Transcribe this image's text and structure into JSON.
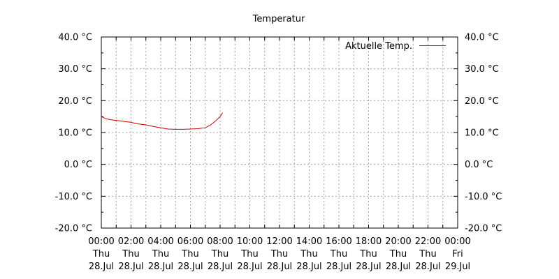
{
  "chart_data": {
    "type": "line",
    "title": "Temperatur",
    "xlabel": "",
    "ylabel": "",
    "xlim": [
      "2022-07-28 00:00",
      "2022-07-29 00:00"
    ],
    "ylim": [
      -20,
      40
    ],
    "grid": true,
    "legend_position": "top-right",
    "y_ticks": [
      {
        "value": 40,
        "label": "40.0 °C"
      },
      {
        "value": 30,
        "label": "30.0 °C"
      },
      {
        "value": 20,
        "label": "20.0 °C"
      },
      {
        "value": 10,
        "label": "10.0 °C"
      },
      {
        "value": 0,
        "label": "0.0 °C"
      },
      {
        "value": -10,
        "label": "-10.0 °C"
      },
      {
        "value": -20,
        "label": "-20.0 °C"
      }
    ],
    "x_ticks": [
      {
        "hour": 0,
        "time": "00:00",
        "day": "Thu",
        "date": "28.Jul"
      },
      {
        "hour": 2,
        "time": "02:00",
        "day": "Thu",
        "date": "28.Jul"
      },
      {
        "hour": 4,
        "time": "04:00",
        "day": "Thu",
        "date": "28.Jul"
      },
      {
        "hour": 6,
        "time": "06:00",
        "day": "Thu",
        "date": "28.Jul"
      },
      {
        "hour": 8,
        "time": "08:00",
        "day": "Thu",
        "date": "28.Jul"
      },
      {
        "hour": 10,
        "time": "10:00",
        "day": "Thu",
        "date": "28.Jul"
      },
      {
        "hour": 12,
        "time": "12:00",
        "day": "Thu",
        "date": "28.Jul"
      },
      {
        "hour": 14,
        "time": "14:00",
        "day": "Thu",
        "date": "28.Jul"
      },
      {
        "hour": 16,
        "time": "16:00",
        "day": "Thu",
        "date": "28.Jul"
      },
      {
        "hour": 18,
        "time": "18:00",
        "day": "Thu",
        "date": "28.Jul"
      },
      {
        "hour": 20,
        "time": "20:00",
        "day": "Thu",
        "date": "28.Jul"
      },
      {
        "hour": 22,
        "time": "22:00",
        "day": "Thu",
        "date": "28.Jul"
      },
      {
        "hour": 24,
        "time": "00:00",
        "day": "Fri",
        "date": "29.Jul"
      }
    ],
    "series": [
      {
        "name": "Aktuelle Temp.",
        "color": "#cc0000",
        "points": [
          {
            "x": "2022-07-28 00:00",
            "y": 15.0
          },
          {
            "x": "2022-07-28 00:20",
            "y": 14.3
          },
          {
            "x": "2022-07-28 00:40",
            "y": 14.0
          },
          {
            "x": "2022-07-28 01:00",
            "y": 13.8
          },
          {
            "x": "2022-07-28 01:30",
            "y": 13.5
          },
          {
            "x": "2022-07-28 02:00",
            "y": 13.2
          },
          {
            "x": "2022-07-28 02:30",
            "y": 12.7
          },
          {
            "x": "2022-07-28 03:00",
            "y": 12.4
          },
          {
            "x": "2022-07-28 03:30",
            "y": 11.9
          },
          {
            "x": "2022-07-28 04:00",
            "y": 11.5
          },
          {
            "x": "2022-07-28 04:30",
            "y": 11.1
          },
          {
            "x": "2022-07-28 05:00",
            "y": 11.0
          },
          {
            "x": "2022-07-28 05:30",
            "y": 11.0
          },
          {
            "x": "2022-07-28 06:00",
            "y": 11.1
          },
          {
            "x": "2022-07-28 06:30",
            "y": 11.2
          },
          {
            "x": "2022-07-28 07:00",
            "y": 11.5
          },
          {
            "x": "2022-07-28 07:20",
            "y": 12.3
          },
          {
            "x": "2022-07-28 07:40",
            "y": 13.5
          },
          {
            "x": "2022-07-28 08:00",
            "y": 15.0
          },
          {
            "x": "2022-07-28 08:10",
            "y": 16.2
          }
        ]
      }
    ]
  }
}
